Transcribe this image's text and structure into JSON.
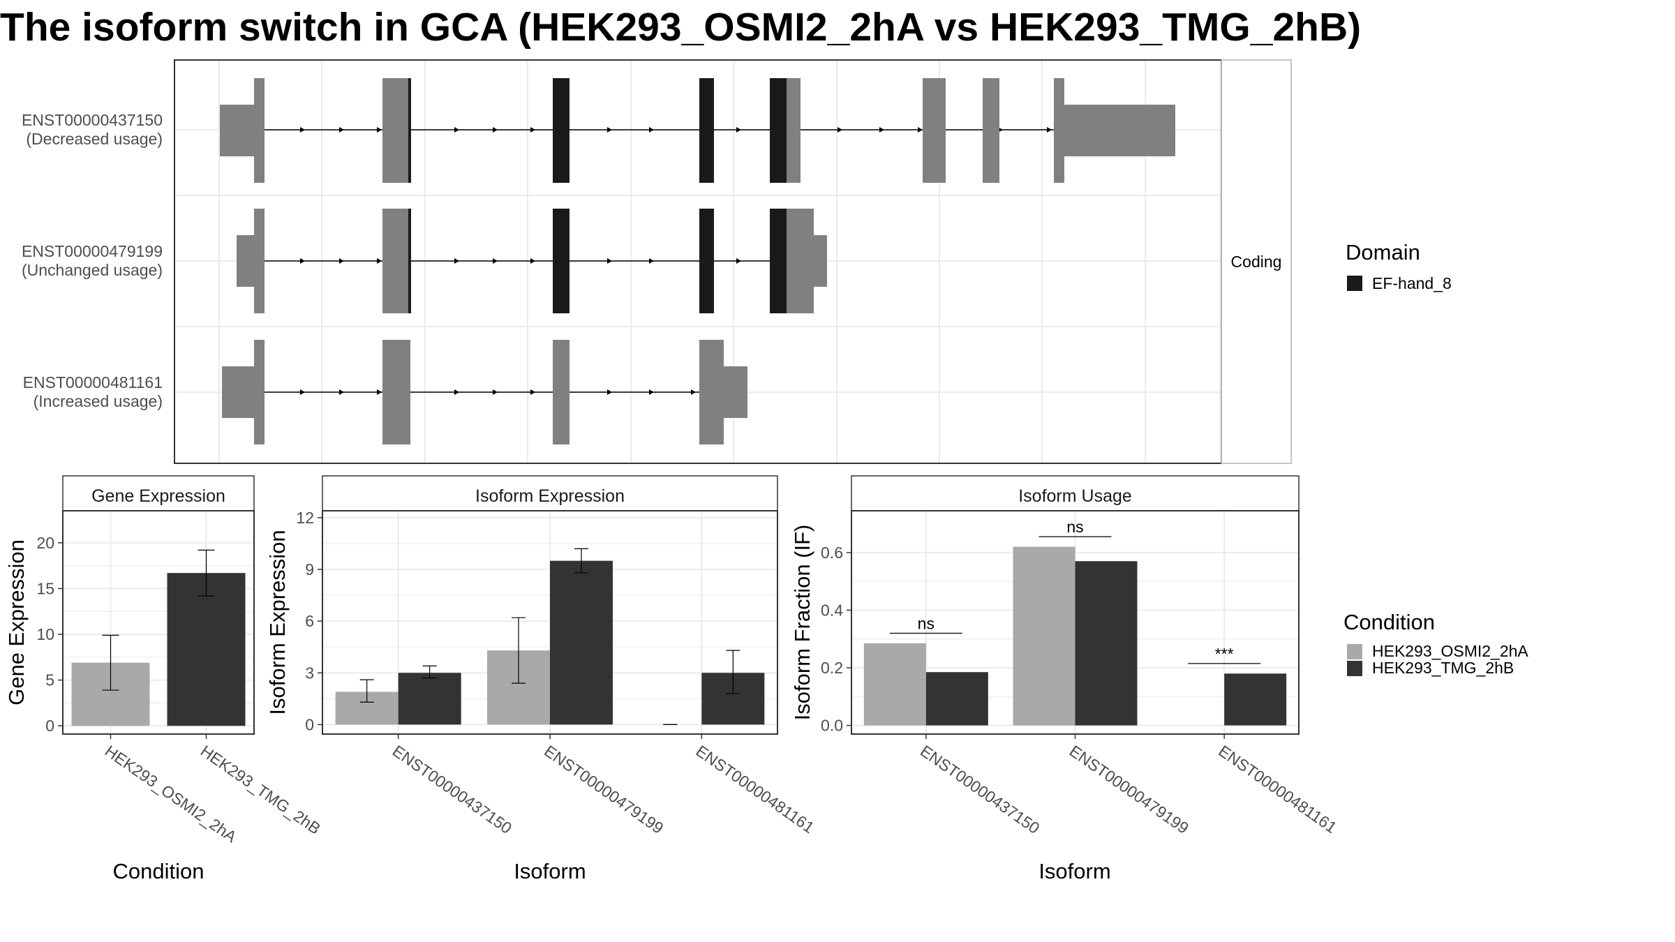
{
  "title": "The isoform switch in GCA (HEK293_OSMI2_2hA vs HEK293_TMG_2hB)",
  "colors": {
    "condition_a": "#a9a9a9",
    "condition_b": "#333333",
    "exon": "#808080",
    "domain": "#1a1a1a",
    "strip_bg": "#ffffff",
    "grid": "#ebebeb",
    "panel_border": "#333333"
  },
  "transcript_panel": {
    "strip_label": "Coding",
    "transcripts": [
      {
        "id": "ENST00000437150",
        "usage": "(Decreased usage)"
      },
      {
        "id": "ENST00000479199",
        "usage": "(Unchanged usage)"
      },
      {
        "id": "ENST00000481161",
        "usage": "(Increased usage)"
      }
    ],
    "domain_legend": {
      "title": "Domain",
      "items": [
        "EF-hand_8"
      ]
    }
  },
  "condition_legend": {
    "title": "Condition",
    "items": [
      "HEK293_OSMI2_2hA",
      "HEK293_TMG_2hB"
    ]
  },
  "chart_data": [
    {
      "type": "bar",
      "title": "Gene Expression",
      "xlabel": "Condition",
      "ylabel": "Gene Expression",
      "categories": [
        "HEK293_OSMI2_2hA",
        "HEK293_TMG_2hB"
      ],
      "values": [
        6.9,
        16.7
      ],
      "errors": [
        [
          3.9,
          9.9
        ],
        [
          14.2,
          19.2
        ]
      ],
      "yticks": [
        0,
        5,
        10,
        15,
        20
      ],
      "ylim": [
        -0.9,
        23.5
      ],
      "grid": true
    },
    {
      "type": "bar",
      "title": "Isoform Expression",
      "xlabel": "Isoform",
      "ylabel": "Isoform Expression",
      "categories": [
        "ENST00000437150",
        "ENST00000479199",
        "ENST00000481161"
      ],
      "series": [
        {
          "name": "HEK293_OSMI2_2hA",
          "values": [
            1.9,
            4.3,
            0.0
          ],
          "errors": [
            [
              1.3,
              2.6
            ],
            [
              2.4,
              6.2
            ],
            [
              0.0,
              0.0
            ]
          ]
        },
        {
          "name": "HEK293_TMG_2hB",
          "values": [
            3.0,
            9.5,
            3.0
          ],
          "errors": [
            [
              2.7,
              3.4
            ],
            [
              8.8,
              10.2
            ],
            [
              1.8,
              4.3
            ]
          ]
        }
      ],
      "yticks": [
        0,
        3,
        6,
        9,
        12
      ],
      "ylim": [
        -0.55,
        12.4
      ],
      "grid": true
    },
    {
      "type": "bar",
      "title": "Isoform Usage",
      "xlabel": "Isoform",
      "ylabel": "Isoform Fraction (IF)",
      "categories": [
        "ENST00000437150",
        "ENST00000479199",
        "ENST00000481161"
      ],
      "series": [
        {
          "name": "HEK293_OSMI2_2hA",
          "values": [
            0.285,
            0.62,
            0.0
          ]
        },
        {
          "name": "HEK293_TMG_2hB",
          "values": [
            0.185,
            0.57,
            0.18
          ]
        }
      ],
      "significance": [
        "ns",
        "ns",
        "***"
      ],
      "significance_y": [
        0.32,
        0.655,
        0.215
      ],
      "yticks": [
        0.0,
        0.2,
        0.4,
        0.6
      ],
      "ylim": [
        -0.03,
        0.745
      ],
      "grid": true
    }
  ]
}
